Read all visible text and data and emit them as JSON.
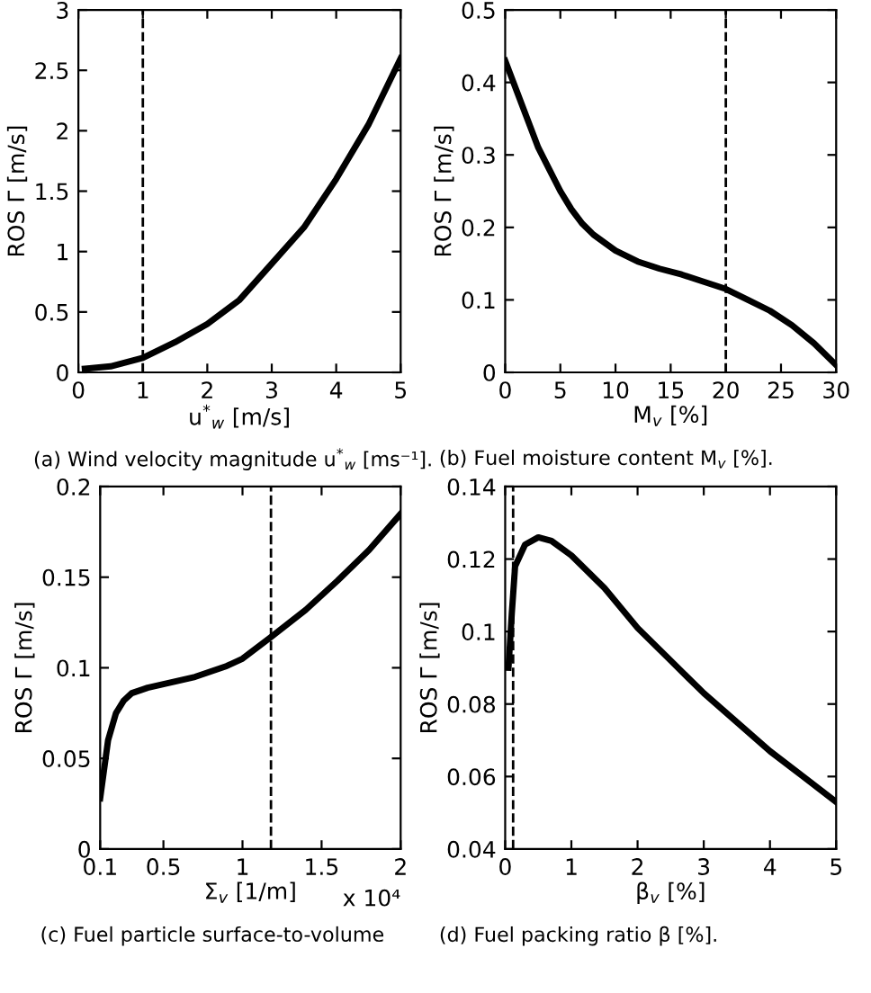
{
  "chart_data": [
    {
      "type": "line",
      "xlabel": "u$^{*}$$_{w}$ [m/s]",
      "ylabel": "ROS Γ [m/s]",
      "annotations": [
        "(a) Wind velocity magnitude u$^{*}$$_{w}$ [ms⁻¹]."
      ],
      "x": [
        0.1,
        0.5,
        1,
        1.5,
        2,
        2.5,
        3,
        3.5,
        4,
        4.5,
        5
      ],
      "series": [
        {
          "color": "#000000",
          "values": [
            0.03,
            0.05,
            0.12,
            0.25,
            0.4,
            0.6,
            0.9,
            1.2,
            1.6,
            2.05,
            2.6
          ]
        }
      ],
      "xlim": [
        0,
        5
      ],
      "xticks": [
        0,
        1,
        2,
        3,
        4,
        5
      ],
      "ylim": [
        0,
        3
      ],
      "yticks": [
        0,
        0.5,
        1,
        1.5,
        2,
        2.5,
        3
      ],
      "ref_lines": [
        {
          "axis": "x",
          "value": 1,
          "line_style": "dashed",
          "color": "#000000"
        }
      ],
      "grid": false,
      "legend": false
    },
    {
      "type": "line",
      "xlabel": "M$_{v}$ [%]",
      "ylabel": "ROS Γ [m/s]",
      "annotations": [
        "(b) Fuel moisture content M$_{v}$ [%]."
      ],
      "x": [
        0,
        1,
        2,
        3,
        4,
        5,
        6,
        7,
        8,
        10,
        12,
        14,
        16,
        18,
        20,
        22,
        24,
        26,
        28,
        30
      ],
      "series": [
        {
          "color": "#000000",
          "values": [
            0.43,
            0.39,
            0.35,
            0.31,
            0.28,
            0.25,
            0.225,
            0.205,
            0.19,
            0.168,
            0.153,
            0.143,
            0.135,
            0.125,
            0.115,
            0.1,
            0.085,
            0.065,
            0.04,
            0.01
          ]
        }
      ],
      "xlim": [
        0,
        30
      ],
      "xticks": [
        0,
        5,
        10,
        15,
        20,
        25,
        30
      ],
      "ylim": [
        0,
        0.5
      ],
      "yticks": [
        0,
        0.1,
        0.2,
        0.3,
        0.4,
        0.5
      ],
      "ref_lines": [
        {
          "axis": "x",
          "value": 20,
          "line_style": "dashed",
          "color": "#000000"
        }
      ],
      "grid": false,
      "legend": false
    },
    {
      "type": "line",
      "xlabel": "Σ$_{v}$ [1/m]",
      "ylabel": "ROS Γ [m/s]",
      "annotations": [
        "x 10⁴",
        "(c) Fuel particle surface-to-volume"
      ],
      "x": [
        0.1,
        0.15,
        0.2,
        0.25,
        0.3,
        0.4,
        0.5,
        0.7,
        0.9,
        1.0,
        1.18,
        1.4,
        1.6,
        1.8,
        2.0
      ],
      "series": [
        {
          "color": "#000000",
          "values": [
            0.028,
            0.06,
            0.075,
            0.082,
            0.086,
            0.089,
            0.091,
            0.095,
            0.101,
            0.105,
            0.117,
            0.132,
            0.148,
            0.165,
            0.185
          ]
        }
      ],
      "xlim": [
        0.1,
        2
      ],
      "xticks": [
        0.1,
        0.5,
        1,
        1.5,
        2
      ],
      "ylim": [
        0,
        0.2
      ],
      "yticks": [
        0,
        0.05,
        0.1,
        0.15,
        0.2
      ],
      "ref_lines": [
        {
          "axis": "x",
          "value": 1.18,
          "line_style": "dashed",
          "color": "#000000"
        }
      ],
      "grid": false,
      "legend": false
    },
    {
      "type": "line",
      "xlabel": "β$_{v}$ [%]",
      "ylabel": "ROS Γ [m/s]",
      "annotations": [
        "(d) Fuel packing ratio β [%]."
      ],
      "x": [
        0.05,
        0.1,
        0.15,
        0.3,
        0.5,
        0.7,
        1,
        1.5,
        2,
        2.5,
        3,
        3.5,
        4,
        4.5,
        5
      ],
      "series": [
        {
          "color": "#000000",
          "values": [
            0.09,
            0.105,
            0.118,
            0.124,
            0.126,
            0.125,
            0.121,
            0.112,
            0.101,
            0.092,
            0.083,
            0.075,
            0.067,
            0.06,
            0.053
          ]
        }
      ],
      "xlim": [
        0,
        5
      ],
      "xticks": [
        0,
        1,
        2,
        3,
        4,
        5
      ],
      "ylim": [
        0.04,
        0.14
      ],
      "yticks": [
        0.04,
        0.06,
        0.08,
        0.1,
        0.12,
        0.14
      ],
      "ref_lines": [
        {
          "axis": "x",
          "value": 0.12,
          "line_style": "dashed",
          "color": "#000000"
        }
      ],
      "grid": false,
      "legend": false
    }
  ]
}
